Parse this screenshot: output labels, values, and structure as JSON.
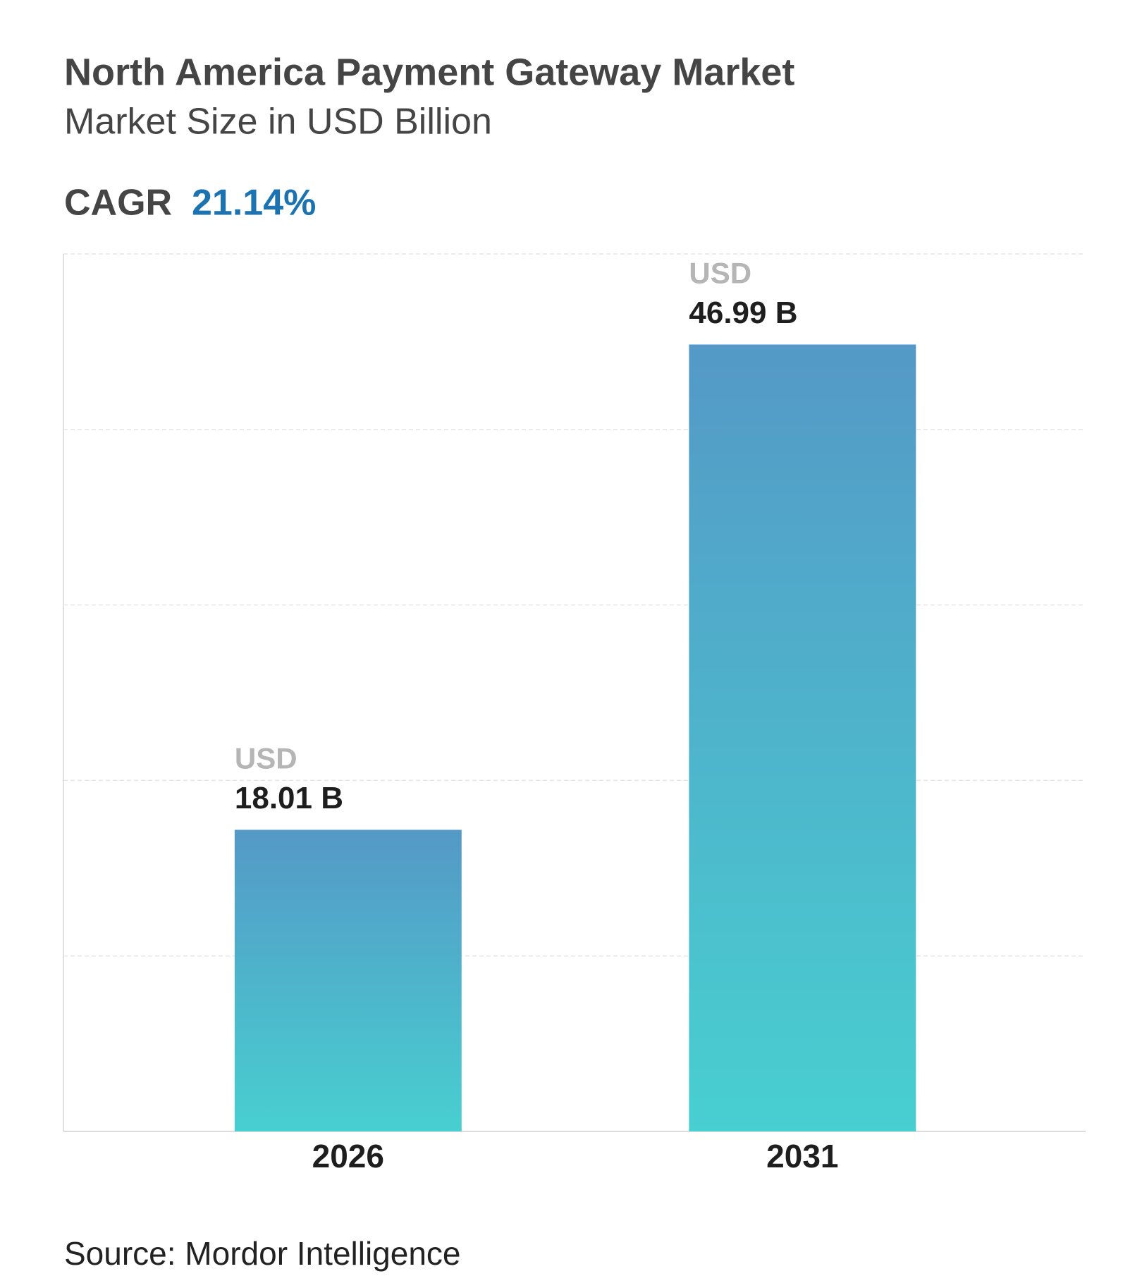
{
  "chart_data": {
    "type": "bar",
    "title": "North America Payment Gateway Market",
    "subtitle": "Market Size in USD Billion",
    "cagr_label": "CAGR",
    "cagr_value": "21.14%",
    "categories": [
      "2026",
      "2031"
    ],
    "values": [
      18.01,
      46.99
    ],
    "value_labels": [
      "18.01 B",
      "46.99 B"
    ],
    "value_prefix": "USD",
    "colors": [
      "#5499c7",
      "#48cfd0"
    ],
    "ylim": [
      0,
      52.4
    ],
    "grid": true,
    "source": "Source: Mordor Intelligence"
  }
}
